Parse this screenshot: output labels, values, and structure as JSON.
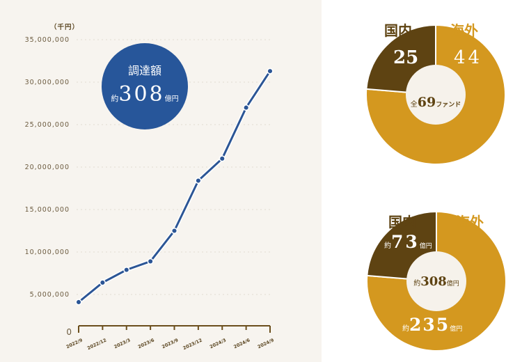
{
  "chart_data": [
    {
      "type": "line",
      "unit_label": "（千円）",
      "categories": [
        "2022/9",
        "2022/12",
        "2023/3",
        "2023/6",
        "2023/9",
        "2023/12",
        "2024/3",
        "2024/6",
        "2024/9"
      ],
      "values": [
        4100000,
        6400000,
        7900000,
        8900000,
        12500000,
        18400000,
        21000000,
        27000000,
        31300000
      ],
      "yticks": [
        "0",
        "5,000,000",
        "10,000,000",
        "15,000,000",
        "20,000,000",
        "25,000,000",
        "30,000,000",
        "35,000,000"
      ],
      "ylim": [
        0,
        35000000
      ],
      "grid": true,
      "color": "#2b5595",
      "badge": {
        "title": "調達額",
        "prefix": "約",
        "value": "308",
        "suffix": "億円",
        "color": "#27569a"
      }
    },
    {
      "type": "pie",
      "center": {
        "prefix": "全",
        "value": "69",
        "suffix": "ファンド"
      },
      "slices": [
        {
          "label": "国内",
          "value": 25,
          "value_text": "25",
          "color": "#5e4312"
        },
        {
          "label": "海外",
          "value": 44,
          "value_text": "44",
          "color": "#d4981f"
        }
      ]
    },
    {
      "type": "pie",
      "center": {
        "prefix": "約",
        "value": "308",
        "suffix": "億円"
      },
      "slices": [
        {
          "label": "国内",
          "value": 73,
          "prefix": "約",
          "value_text": "73",
          "suffix": "億円",
          "color": "#5e4312"
        },
        {
          "label": "海外",
          "value": 235,
          "prefix": "約",
          "value_text": "235",
          "suffix": "億円",
          "color": "#d4981f"
        }
      ]
    }
  ]
}
